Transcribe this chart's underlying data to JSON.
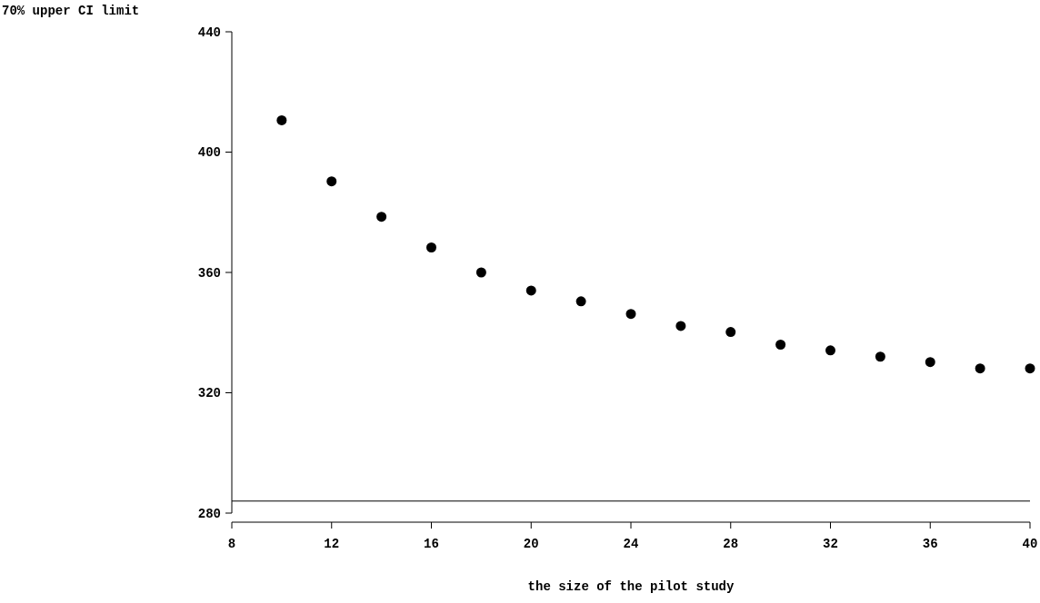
{
  "chart_data": {
    "type": "scatter",
    "xlabel": "the size of the pilot study",
    "ylabel": "70% upper CI limit",
    "x": [
      10,
      12,
      14,
      16,
      18,
      20,
      22,
      24,
      26,
      28,
      30,
      32,
      34,
      36,
      38,
      40
    ],
    "values": [
      410.6,
      390.3,
      378.5,
      368.3,
      360,
      354,
      350.4,
      346.2,
      342.2,
      340.2,
      336,
      334.1,
      332,
      330.2,
      328.1,
      328.1
    ],
    "color": "#000000",
    "marker": "circle",
    "xlim": [
      8,
      40
    ],
    "xticks": [
      8,
      12,
      16,
      20,
      24,
      28,
      32,
      36,
      40
    ],
    "ylim": [
      280,
      440
    ],
    "yticks": [
      280,
      320,
      360,
      400,
      440
    ],
    "ref_lines": [
      {
        "axis": "y",
        "value": 284,
        "color": "#000000"
      }
    ],
    "grid": false
  }
}
